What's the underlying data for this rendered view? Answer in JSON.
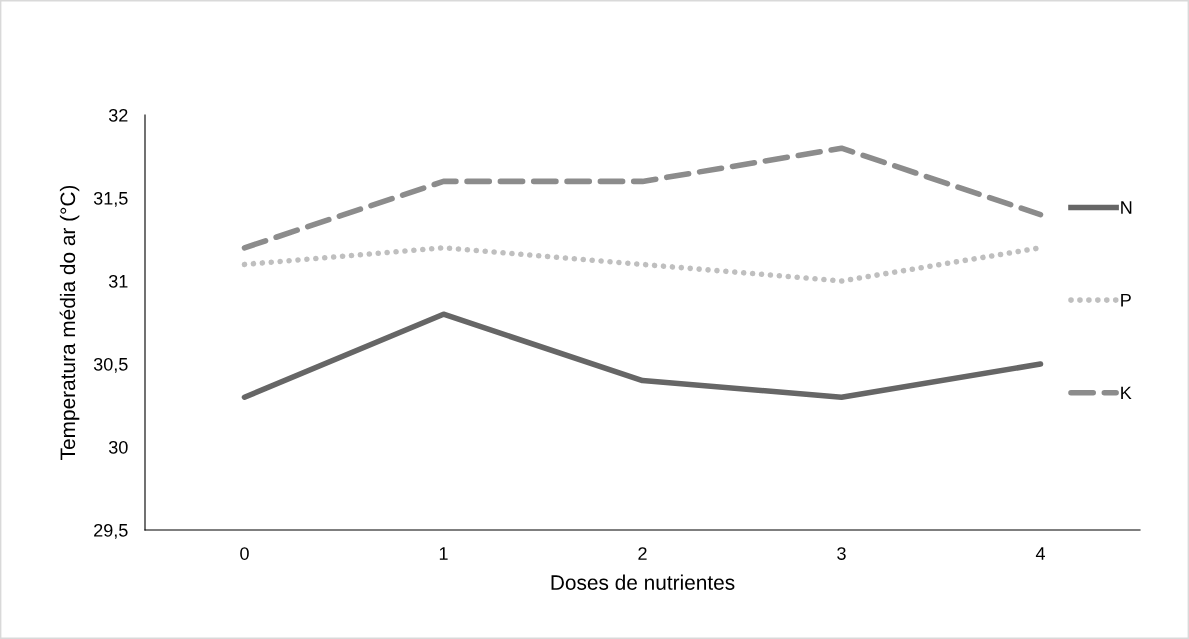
{
  "chart_data": {
    "type": "line",
    "xlabel": "Doses de nutrientes",
    "ylabel": "Temperatura média do ar (°C)",
    "categories": [
      "0",
      "1",
      "2",
      "3",
      "4"
    ],
    "series": [
      {
        "name": "N",
        "color": "#666666",
        "line_style": "solid",
        "values": [
          30.3,
          30.8,
          30.4,
          30.3,
          30.5
        ]
      },
      {
        "name": "P",
        "color": "#bfbfbf",
        "line_style": "dotted",
        "values": [
          31.1,
          31.2,
          31.1,
          31.0,
          31.2
        ]
      },
      {
        "name": "K",
        "color": "#8c8c8c",
        "line_style": "dashed",
        "values": [
          31.2,
          31.6,
          31.6,
          31.8,
          31.4
        ]
      }
    ],
    "ylim": [
      29.5,
      32
    ],
    "yticks": [
      {
        "value": 29.5,
        "label": "29,5"
      },
      30,
      {
        "value": 30.5,
        "label": "30,5"
      },
      31,
      {
        "value": 31.5,
        "label": "31,5"
      },
      32
    ],
    "grid": false,
    "legend": "right",
    "marker": "none"
  }
}
